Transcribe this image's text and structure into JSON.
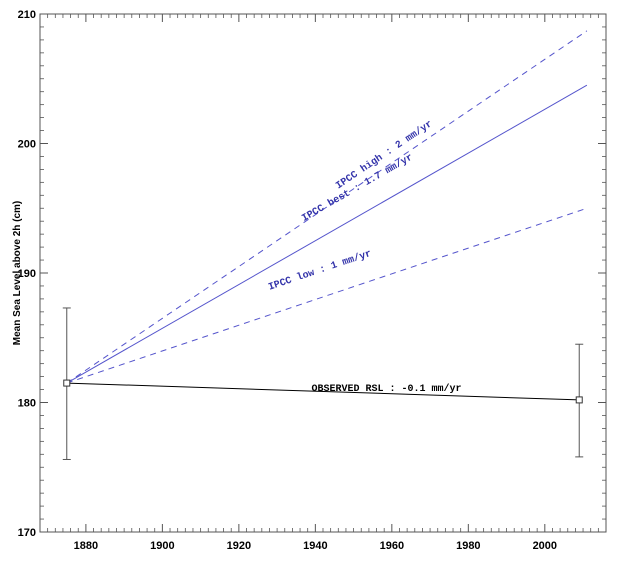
{
  "chart_data": {
    "type": "line",
    "title": "",
    "xlabel": "",
    "ylabel": "Mean Sea Level above 2h (cm)",
    "xlim": [
      1868,
      2016
    ],
    "ylim": [
      170,
      210
    ],
    "x_ticks": [
      1880,
      1900,
      1920,
      1940,
      1960,
      1980,
      2000
    ],
    "y_ticks": [
      170,
      180,
      190,
      200,
      210
    ],
    "grid": false,
    "series": [
      {
        "name": "OBSERVED RSL : -0.1 mm/yr",
        "x": [
          1875,
          2009
        ],
        "y": [
          181.5,
          180.2
        ],
        "style": "solid",
        "color": "#000000",
        "error_bars": [
          [
            175.6,
            187.3
          ],
          [
            175.8,
            184.5
          ]
        ]
      },
      {
        "name": "IPCC high : 2 mm/yr",
        "x": [
          1875,
          2011
        ],
        "y": [
          181.5,
          208.7
        ],
        "style": "dashed",
        "color": "#5555cc"
      },
      {
        "name": "IPCC best : 1.7 mm/yr",
        "x": [
          1875,
          2011
        ],
        "y": [
          181.5,
          204.5
        ],
        "style": "solid",
        "color": "#5555cc"
      },
      {
        "name": "IPCC low : 1 mm/yr",
        "x": [
          1875,
          2011
        ],
        "y": [
          181.5,
          195.0
        ],
        "style": "dashed",
        "color": "#5555cc"
      }
    ],
    "annotations": [
      {
        "key": "high",
        "text": "IPCC high : 2 mm/yr",
        "x": 1946,
        "y": 196.5,
        "color": "#3333aa"
      },
      {
        "key": "best",
        "text": "IPCC best : 1.7 mm/yr",
        "x": 1937,
        "y": 194.0,
        "color": "#3333aa"
      },
      {
        "key": "low",
        "text": "IPCC low : 1 mm/yr",
        "x": 1928,
        "y": 188.7,
        "color": "#3333aa"
      },
      {
        "key": "observed",
        "text": "OBSERVED RSL : -0.1 mm/yr",
        "x": 1939,
        "y": 180.9,
        "color": "#000000"
      }
    ]
  }
}
